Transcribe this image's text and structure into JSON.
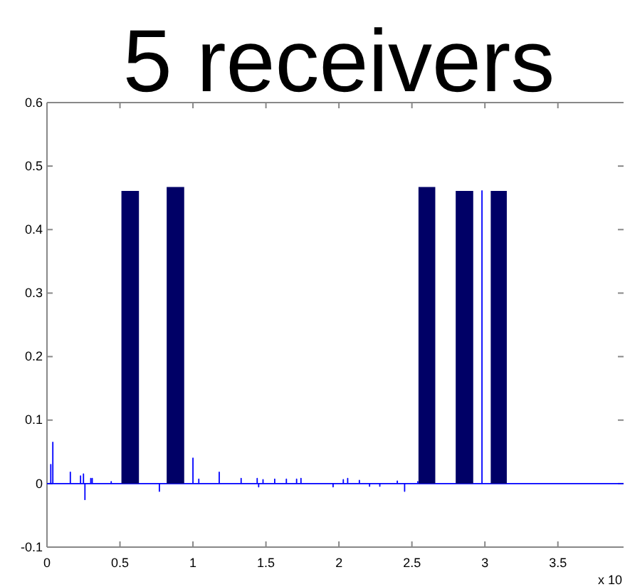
{
  "chart_data": {
    "type": "line",
    "title": "5 receivers",
    "xlim": [
      0,
      3.95
    ],
    "ylim": [
      -0.1,
      0.6
    ],
    "xticks": [
      0,
      0.5,
      1,
      1.5,
      2,
      2.5,
      3,
      3.5
    ],
    "yticks": [
      -0.1,
      0,
      0.1,
      0.2,
      0.3,
      0.4,
      0.5,
      0.6
    ],
    "grid": false,
    "annotations": [
      "x 10"
    ],
    "series": [
      {
        "color": "#0000ff",
        "x": [
          0,
          0.026,
          0.026,
          0.026,
          0.04,
          0.04,
          0.04,
          0.16,
          0.16,
          0.16,
          0.23,
          0.23,
          0.23,
          0.25,
          0.25,
          0.25,
          0.26,
          0.26,
          0.26,
          0.3,
          0.3,
          0.3,
          0.31,
          0.31,
          0.31,
          0.44,
          0.44,
          0.44,
          0.77,
          0.77,
          0.77,
          1.0,
          1.0,
          1.0,
          1.04,
          1.04,
          1.04,
          1.18,
          1.18,
          1.18,
          1.33,
          1.33,
          1.33,
          1.44,
          1.44,
          1.44,
          1.45,
          1.45,
          1.45,
          1.48,
          1.48,
          1.48,
          1.56,
          1.56,
          1.56,
          1.64,
          1.64,
          1.64,
          1.71,
          1.71,
          1.71,
          1.74,
          1.74,
          1.74,
          1.96,
          1.96,
          1.96,
          2.03,
          2.03,
          2.03,
          2.06,
          2.06,
          2.06,
          2.14,
          2.14,
          2.14,
          2.21,
          2.21,
          2.21,
          2.28,
          2.28,
          2.28,
          2.4,
          2.4,
          2.4,
          2.45,
          2.45,
          2.45,
          2.54,
          2.54,
          2.54,
          2.98,
          2.98,
          2.98,
          3.95
        ],
        "values": [
          0,
          0,
          0.03,
          0,
          0,
          0.065,
          0,
          0,
          0.018,
          0,
          0,
          0.012,
          0,
          0,
          0.015,
          0,
          0,
          -0.025,
          0,
          0,
          0.008,
          0,
          0,
          0.008,
          0,
          0,
          0.003,
          0,
          0,
          -0.012,
          0,
          0,
          0.04,
          0,
          0,
          0.007,
          0,
          0,
          0.018,
          0,
          0,
          0.008,
          0,
          0,
          0.008,
          0,
          0,
          -0.005,
          0,
          0,
          0.006,
          0,
          0,
          0.007,
          0,
          0,
          0.007,
          0,
          0,
          0.007,
          0,
          0,
          0.008,
          0,
          0,
          -0.005,
          0,
          0,
          0.006,
          0,
          0,
          0.008,
          0,
          0,
          0.005,
          0,
          0,
          -0.004,
          0,
          0,
          -0.004,
          0,
          0,
          0.004,
          0,
          0,
          -0.012,
          0,
          0,
          0.003,
          0,
          0,
          0.461,
          0,
          0
        ]
      },
      {
        "type": "area",
        "color": "#000066",
        "x": [
          0.51,
          0.63,
          0.7,
          0.82,
          0.94,
          1.5,
          2.545,
          2.66,
          2.7,
          2.8,
          2.92,
          2.95,
          3.04,
          3.15
        ],
        "values": [
          0.461,
          0.461,
          null,
          0.467,
          0.467,
          null,
          0.467,
          0.467,
          null,
          0.461,
          0.461,
          null,
          0.461,
          0.461
        ]
      }
    ]
  }
}
